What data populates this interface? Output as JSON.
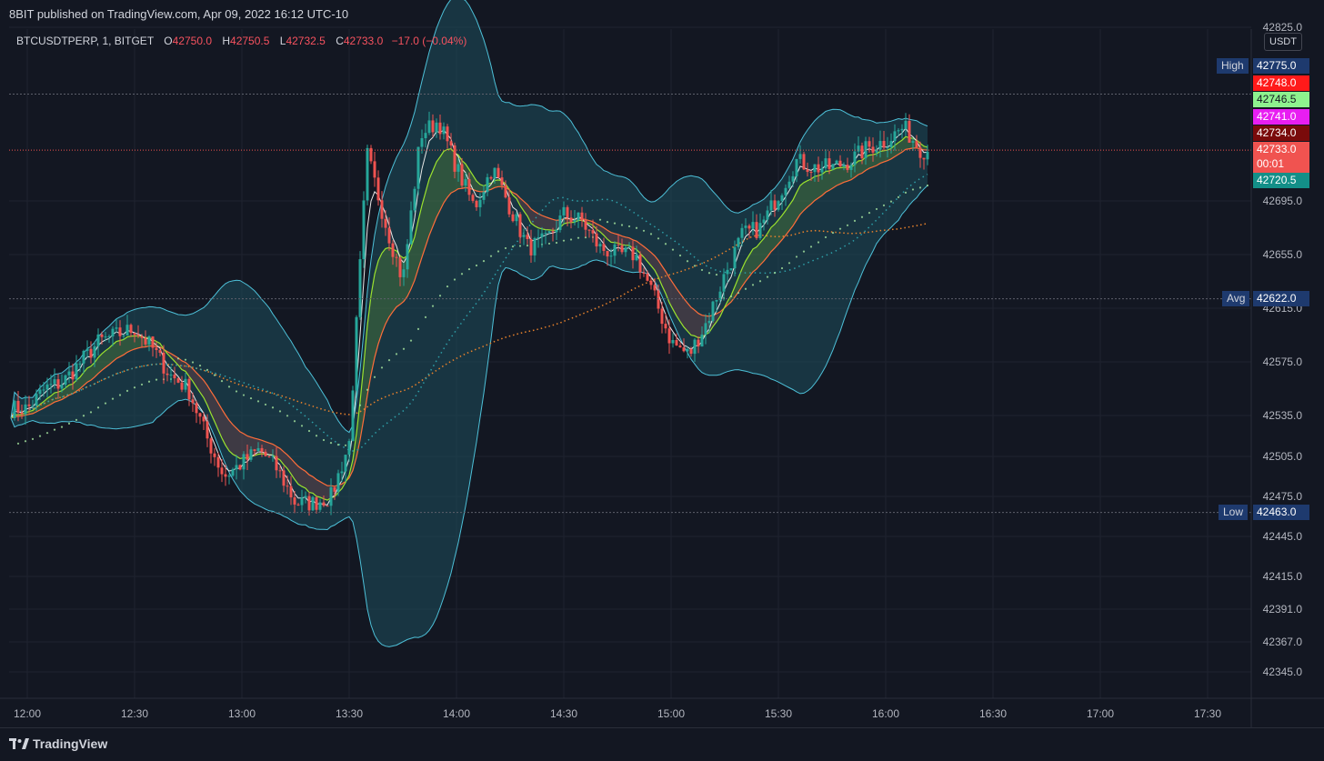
{
  "header": {
    "publisher_line": "8BIT published on TradingView.com, Apr 09, 2022 16:12 UTC-10"
  },
  "legend": {
    "symbol": "BTCUSDTPERP, 1, BITGET",
    "open_label": "O",
    "open": "42750.0",
    "high_label": "H",
    "high": "42750.5",
    "low_label": "L",
    "low": "42732.5",
    "close_label": "C",
    "close": "42733.0",
    "change": "−17.0 (−0.04%)"
  },
  "currency": "USDT",
  "footer": {
    "brand": "TradingView"
  },
  "colors": {
    "background": "#131722",
    "grid": "#1f2330",
    "up": "#26a69a",
    "down": "#ef5350",
    "bb_fill": "#1e4f5c",
    "bb_line": "#4dc0d8",
    "purple": "#c33fe0",
    "ema_green": "#9be22e",
    "ema_red": "#ff6d3a",
    "ma_orange": "#e8822c"
  },
  "chart_data": {
    "type": "candlestick",
    "y_ticks": [
      "42825.0",
      "42695.0",
      "42655.0",
      "42615.0",
      "42575.0",
      "42535.0",
      "42505.0",
      "42475.0",
      "42445.0",
      "42415.0",
      "42391.0",
      "42367.0",
      "42345.0"
    ],
    "x_ticks": [
      "12:00",
      "12:30",
      "13:00",
      "13:30",
      "14:00",
      "14:30",
      "15:00",
      "15:30",
      "16:00",
      "16:30",
      "17:00",
      "17:30"
    ],
    "ylim": [
      42330,
      42830
    ],
    "price_tags": [
      {
        "label": "High",
        "value": "42775.0",
        "bg": "#1e3a6e"
      },
      {
        "label": "",
        "value": "42748.0",
        "bg": "#ff1a1a"
      },
      {
        "label": "",
        "value": "42746.5",
        "bg": "#8ef28e"
      },
      {
        "label": "",
        "value": "42741.0",
        "bg": "#e81ef2"
      },
      {
        "label": "",
        "value": "42734.0",
        "bg": "#7a0b0b"
      },
      {
        "label": "",
        "value": "42733.0",
        "sub": "00:01",
        "bg": "#f05350"
      },
      {
        "label": "",
        "value": "42720.5",
        "bg": "#138f88"
      },
      {
        "label": "Avg",
        "value": "42622.0",
        "bg": "#1e3a6e"
      },
      {
        "label": "Low",
        "value": "42463.0",
        "bg": "#1e3a6e"
      }
    ],
    "anchor_prices": [
      {
        "t": "12:00",
        "p": 42540
      },
      {
        "t": "12:05",
        "p": 42555
      },
      {
        "t": "12:10",
        "p": 42560
      },
      {
        "t": "12:15",
        "p": 42575
      },
      {
        "t": "12:20",
        "p": 42590
      },
      {
        "t": "12:25",
        "p": 42595
      },
      {
        "t": "12:30",
        "p": 42600
      },
      {
        "t": "12:35",
        "p": 42585
      },
      {
        "t": "12:40",
        "p": 42565
      },
      {
        "t": "12:45",
        "p": 42555
      },
      {
        "t": "12:50",
        "p": 42520
      },
      {
        "t": "12:55",
        "p": 42490
      },
      {
        "t": "13:00",
        "p": 42500
      },
      {
        "t": "13:05",
        "p": 42510
      },
      {
        "t": "13:10",
        "p": 42495
      },
      {
        "t": "13:15",
        "p": 42470
      },
      {
        "t": "13:20",
        "p": 42470
      },
      {
        "t": "13:25",
        "p": 42475
      },
      {
        "t": "13:30",
        "p": 42515
      },
      {
        "t": "13:35",
        "p": 42730
      },
      {
        "t": "13:40",
        "p": 42680
      },
      {
        "t": "13:45",
        "p": 42635
      },
      {
        "t": "13:50",
        "p": 42745
      },
      {
        "t": "13:55",
        "p": 42755
      },
      {
        "t": "14:00",
        "p": 42720
      },
      {
        "t": "14:05",
        "p": 42690
      },
      {
        "t": "14:10",
        "p": 42720
      },
      {
        "t": "14:15",
        "p": 42690
      },
      {
        "t": "14:20",
        "p": 42660
      },
      {
        "t": "14:25",
        "p": 42665
      },
      {
        "t": "14:30",
        "p": 42685
      },
      {
        "t": "14:35",
        "p": 42680
      },
      {
        "t": "14:40",
        "p": 42660
      },
      {
        "t": "14:45",
        "p": 42655
      },
      {
        "t": "14:50",
        "p": 42655
      },
      {
        "t": "14:55",
        "p": 42625
      },
      {
        "t": "15:00",
        "p": 42590
      },
      {
        "t": "15:05",
        "p": 42580
      },
      {
        "t": "15:10",
        "p": 42605
      },
      {
        "t": "15:15",
        "p": 42640
      },
      {
        "t": "15:20",
        "p": 42670
      },
      {
        "t": "15:25",
        "p": 42675
      },
      {
        "t": "15:30",
        "p": 42700
      },
      {
        "t": "15:35",
        "p": 42725
      },
      {
        "t": "15:40",
        "p": 42720
      },
      {
        "t": "15:45",
        "p": 42720
      },
      {
        "t": "15:50",
        "p": 42725
      },
      {
        "t": "15:55",
        "p": 42735
      },
      {
        "t": "16:00",
        "p": 42740
      },
      {
        "t": "16:05",
        "p": 42750
      },
      {
        "t": "16:10",
        "p": 42733
      }
    ]
  }
}
